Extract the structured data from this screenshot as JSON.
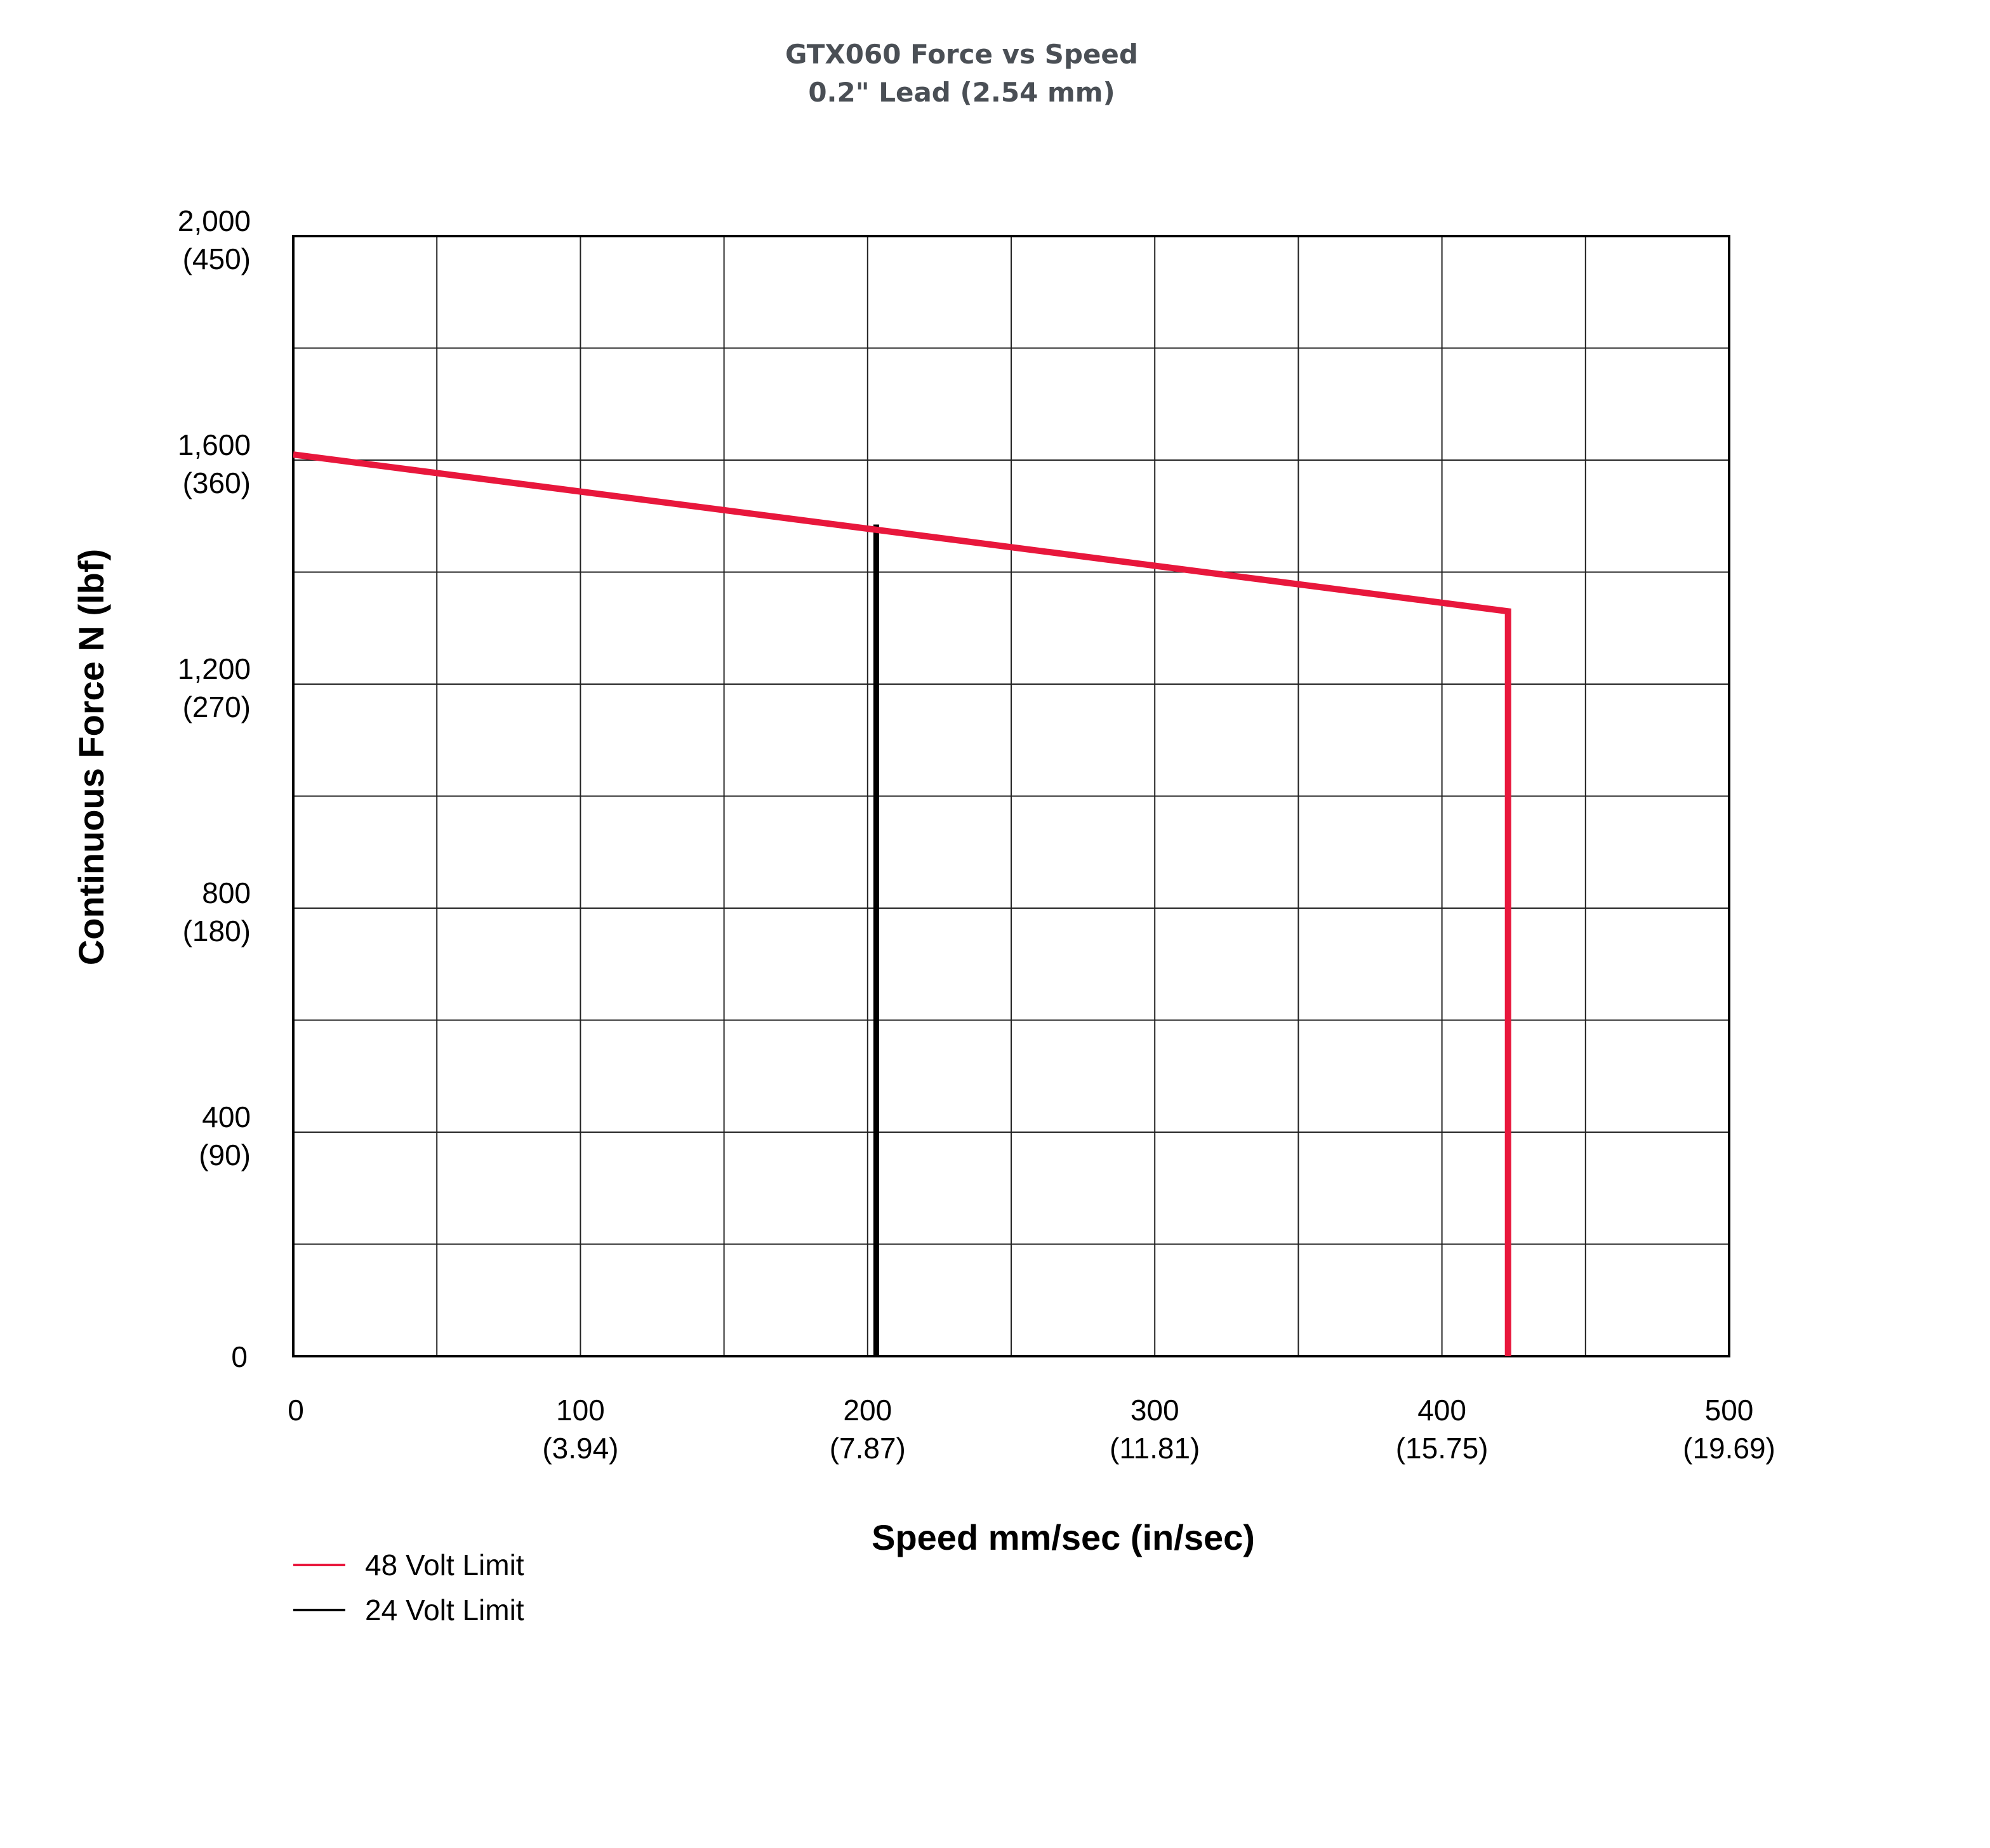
{
  "chart_data": {
    "type": "line",
    "title": "GTX060 Force vs Speed",
    "subtitle": "0.2\" Lead (2.54 mm)",
    "xlabel": "Speed mm/sec (in/sec)",
    "ylabel": "Continuous Force N (lbf)",
    "xlim": [
      0,
      500
    ],
    "ylim": [
      0,
      2000
    ],
    "grid": true,
    "x_gridlines": [
      0,
      50,
      100,
      150,
      200,
      250,
      300,
      350,
      400,
      450,
      500
    ],
    "y_gridlines": [
      0,
      200,
      400,
      600,
      800,
      1000,
      1200,
      1400,
      1600,
      1800,
      2000
    ],
    "x_ticks": [
      {
        "value": 0,
        "label": "0",
        "sublabel": ""
      },
      {
        "value": 100,
        "label": "100",
        "sublabel": "(3.94)"
      },
      {
        "value": 200,
        "label": "200",
        "sublabel": "(7.87)"
      },
      {
        "value": 300,
        "label": "300",
        "sublabel": "(11.81)"
      },
      {
        "value": 400,
        "label": "400",
        "sublabel": "(15.75)"
      },
      {
        "value": 500,
        "label": "500",
        "sublabel": "(19.69)"
      }
    ],
    "y_ticks": [
      {
        "value": 0,
        "label": "0",
        "sublabel": ""
      },
      {
        "value": 400,
        "label": "400",
        "sublabel": "(90)"
      },
      {
        "value": 800,
        "label": "800",
        "sublabel": "(180)"
      },
      {
        "value": 1200,
        "label": "1,200",
        "sublabel": "(270)"
      },
      {
        "value": 1600,
        "label": "1,600",
        "sublabel": "(360)"
      },
      {
        "value": 2000,
        "label": "2,000",
        "sublabel": "(450)"
      }
    ],
    "series": [
      {
        "name": "48 Volt Limit",
        "color": "#e8173c",
        "points": [
          [
            0,
            1610
          ],
          [
            423,
            1330
          ],
          [
            423,
            0
          ]
        ]
      },
      {
        "name": "24 Volt Limit",
        "color": "#000000",
        "points": [
          [
            203,
            1485
          ],
          [
            203,
            0
          ]
        ]
      }
    ],
    "legend_position": "bottom-left"
  }
}
